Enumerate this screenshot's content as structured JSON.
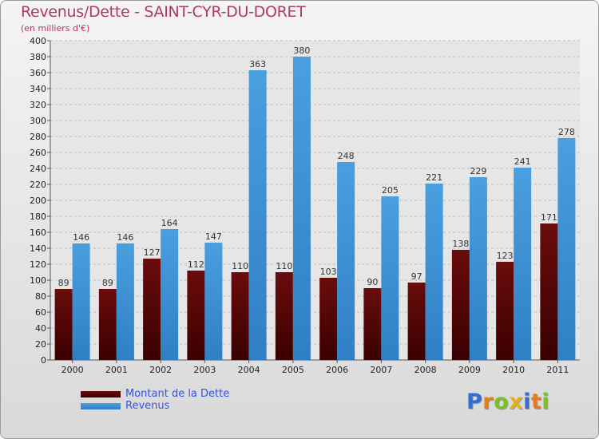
{
  "colors": {
    "debt": "#6a0c0c",
    "revenue": "#4a9fdf",
    "title": "#b03a5e"
  },
  "chart_data": {
    "type": "bar",
    "title": "Revenus/Dette - SAINT-CYR-DU-DORET",
    "subtitle": "(en milliers d'€)",
    "categories": [
      "2000",
      "2001",
      "2002",
      "2003",
      "2004",
      "2005",
      "2006",
      "2007",
      "2008",
      "2009",
      "2010",
      "2011"
    ],
    "series": [
      {
        "name": "Montant de la Dette",
        "values": [
          89,
          89,
          127,
          112,
          110,
          110,
          103,
          90,
          97,
          138,
          123,
          171
        ]
      },
      {
        "name": "Revenus",
        "values": [
          146,
          146,
          164,
          147,
          363,
          380,
          248,
          205,
          221,
          229,
          241,
          278
        ]
      }
    ],
    "ylim": [
      0,
      400
    ],
    "ytick_step": 20,
    "grid": true,
    "legend": "bottom-left"
  },
  "logo": {
    "text": "Proxiti",
    "letter_colors": [
      "#2f6fd6",
      "#e27c1e",
      "#7cc12a",
      "#e4b01f",
      "#2f6fd6",
      "#e27c1e",
      "#7cc12a"
    ]
  }
}
